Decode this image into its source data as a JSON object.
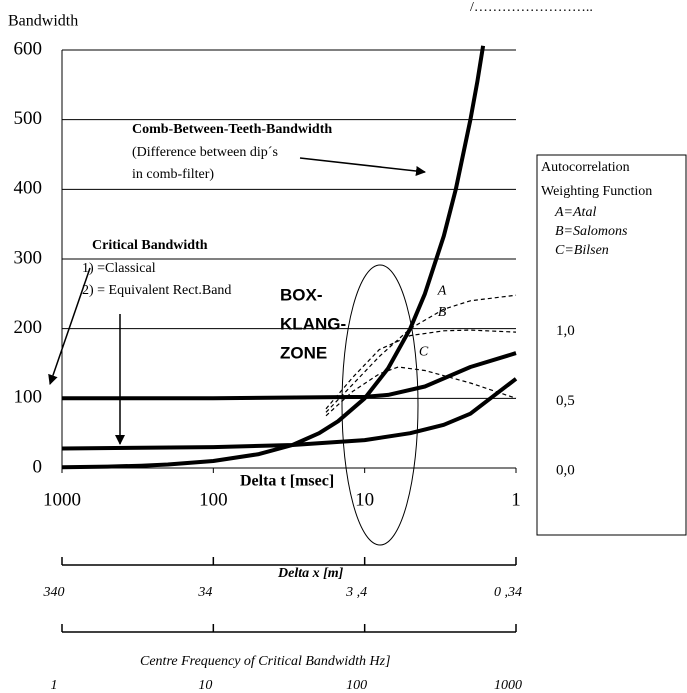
{
  "chart_data": {
    "type": "line",
    "ylabel": "Bandwidth",
    "xlabel": "Delta t [msec]",
    "header": "/……………………..",
    "xscale": "log",
    "xlim": [
      1000,
      1
    ],
    "xticks": [
      1000,
      100,
      10,
      1
    ],
    "ylim": [
      0,
      600
    ],
    "yticks": [
      0,
      100,
      200,
      300,
      400,
      500,
      600
    ],
    "grid": true,
    "series": [
      {
        "color": "#000000",
        "dash": false,
        "width": 4,
        "x": [
          1000,
          500,
          300,
          200,
          100,
          50,
          30,
          20,
          15,
          10,
          7,
          5,
          4,
          3,
          2.5,
          2,
          1.8,
          1.65
        ],
        "values": [
          1,
          2,
          3.3,
          5,
          10,
          20,
          33,
          50,
          67,
          100,
          143,
          200,
          250,
          333,
          400,
          500,
          555,
          606
        ]
      },
      {
        "color": "#000000",
        "dash": false,
        "width": 4,
        "x": [
          1000,
          100,
          10,
          7,
          4,
          2,
          1
        ],
        "values": [
          100,
          100,
          102,
          105,
          117,
          145,
          165
        ]
      },
      {
        "color": "#000000",
        "dash": false,
        "width": 4,
        "x": [
          1000,
          100,
          30,
          10,
          5,
          3,
          2,
          1
        ],
        "values": [
          28,
          30,
          33,
          40,
          50,
          62,
          78,
          128
        ]
      },
      {
        "name": "A",
        "color": "#000000",
        "dash": true,
        "width": 1.2,
        "x": [
          18,
          12,
          8,
          5,
          3,
          2,
          1
        ],
        "values": [
          80,
          120,
          160,
          200,
          228,
          240,
          248
        ]
      },
      {
        "name": "B",
        "color": "#000000",
        "dash": true,
        "width": 1.2,
        "x": [
          18,
          12,
          8,
          5,
          3,
          2,
          1
        ],
        "values": [
          85,
          130,
          170,
          190,
          197,
          198,
          195
        ]
      },
      {
        "name": "C",
        "color": "#000000",
        "dash": true,
        "width": 1.2,
        "x": [
          18,
          12,
          8,
          6,
          4,
          2,
          1
        ],
        "values": [
          75,
          110,
          135,
          145,
          140,
          122,
          100
        ]
      }
    ],
    "delta_x_axis": {
      "label": "Delta x [m]",
      "xlim": [
        340,
        0.34
      ],
      "xticks": [
        340,
        34,
        {
          "value": 3.4,
          "label": "3 ,4"
        },
        {
          "value": 0.34,
          "label": "0 ,34"
        }
      ]
    },
    "frequency_axis": {
      "label": "Centre Frequency of Critical Bandwidth  Hz]",
      "xlim": [
        1,
        1000
      ],
      "xticks": [
        1,
        10,
        100,
        1000
      ]
    },
    "weighting_box": {
      "lines": [
        "Autocorrelation",
        "Weighting Function",
        "A=Atal",
        "B=Salomons",
        "C=Bilsen"
      ],
      "y2lim": [
        0,
        3
      ],
      "y2ticks": [
        {
          "value": 1,
          "label": "1,0"
        },
        {
          "value": 0.5,
          "label": "0,5"
        },
        {
          "value": 0,
          "label": "0,0"
        }
      ]
    },
    "annotations": {
      "comb": [
        "Comb-Between-Teeth-Bandwidth",
        "(Difference between dip´s",
        "in comb-filter)"
      ],
      "critical": [
        "Critical Bandwidth",
        "1) =Classical",
        "2) = Equivalent Rect.Band"
      ],
      "zone": [
        "BOX-",
        "KLANG-",
        "ZONE"
      ]
    }
  }
}
